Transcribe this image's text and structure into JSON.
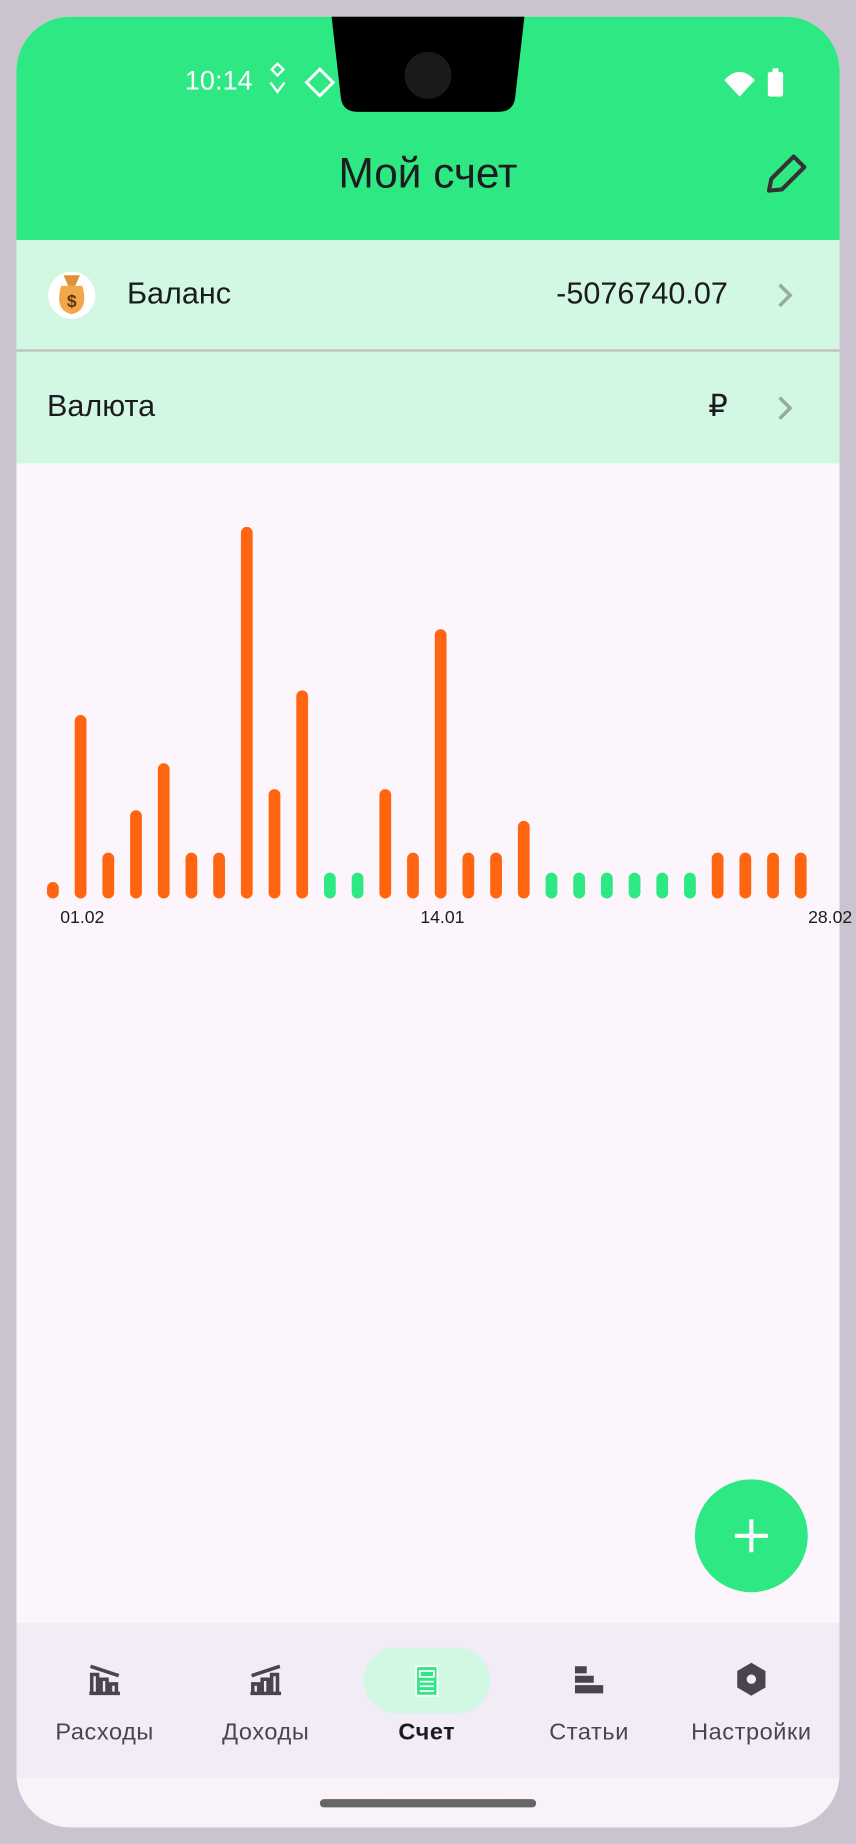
{
  "status_bar": {
    "time": "10:14"
  },
  "header": {
    "title": "Мой счет"
  },
  "rows": [
    {
      "label": "Баланс",
      "value": "-5076740.07"
    },
    {
      "label": "Валюта",
      "value": "₽"
    }
  ],
  "chart_data": {
    "type": "bar",
    "categories": [
      "01.02",
      null,
      null,
      null,
      null,
      null,
      null,
      null,
      null,
      null,
      null,
      null,
      null,
      "14.01",
      null,
      null,
      null,
      null,
      null,
      null,
      null,
      null,
      null,
      null,
      null,
      null,
      null,
      "28.02"
    ],
    "values": [
      14,
      156,
      39,
      75,
      115,
      39,
      39,
      316,
      93,
      177,
      22,
      22,
      93,
      39,
      229,
      39,
      39,
      66,
      22,
      22,
      22,
      22,
      22,
      22,
      39,
      39,
      39,
      39
    ],
    "colors": [
      "#ff6410",
      "#ff6410",
      "#ff6410",
      "#ff6410",
      "#ff6410",
      "#ff6410",
      "#ff6410",
      "#ff6410",
      "#ff6410",
      "#ff6410",
      "#2ee884",
      "#2ee884",
      "#ff6410",
      "#ff6410",
      "#ff6410",
      "#ff6410",
      "#ff6410",
      "#ff6410",
      "#2ee884",
      "#2ee884",
      "#2ee884",
      "#2ee884",
      "#2ee884",
      "#2ee884",
      "#ff6410",
      "#ff6410",
      "#ff6410",
      "#ff6410"
    ],
    "ylim": [
      0,
      320
    ]
  },
  "nav": [
    {
      "label": "Расходы"
    },
    {
      "label": "Доходы"
    },
    {
      "label": "Счет"
    },
    {
      "label": "Статьи"
    },
    {
      "label": "Настройки"
    }
  ]
}
